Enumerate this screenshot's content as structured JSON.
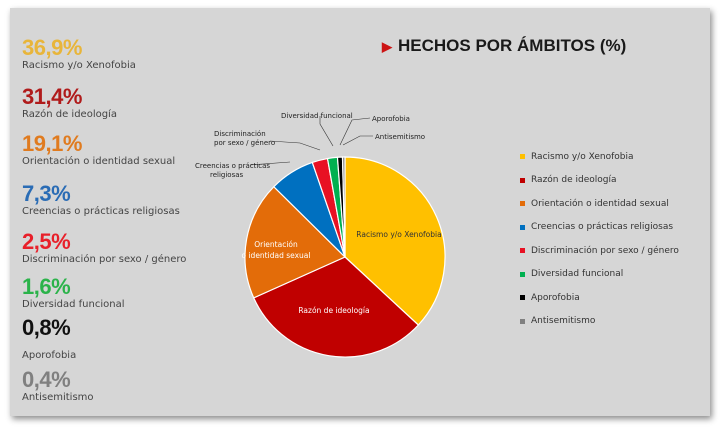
{
  "chart_data": {
    "type": "pie",
    "title": "HECHOS POR ÁMBITOS (%)",
    "categories": [
      "Racismo y/o Xenofobia",
      "Razón de ideología",
      "Orientación o identidad sexual",
      "Creencias o prácticas religiosas",
      "Discriminación por sexo / género",
      "Diversidad funcional",
      "Aporofobia",
      "Antisemitismo"
    ],
    "values": [
      36.9,
      31.4,
      19.1,
      7.3,
      2.5,
      1.6,
      0.8,
      0.4
    ],
    "colors": [
      "#ffc000",
      "#c00000",
      "#e36c09",
      "#0070c0",
      "#e81123",
      "#00b050",
      "#000000",
      "#808080"
    ],
    "legend_placement": "right"
  },
  "stats": [
    {
      "pct": "36,9%",
      "label": "Racismo y/o Xenofobia",
      "color": "#e8b53a"
    },
    {
      "pct": "31,4%",
      "label": "Razón de ideología",
      "color": "#b01b1b"
    },
    {
      "pct": "19,1%",
      "label": "Orientación o identidad sexual",
      "color": "#e07b1f"
    },
    {
      "pct": "7,3%",
      "label": "Creencias o prácticas religiosas",
      "color": "#2a6cb5"
    },
    {
      "pct": "2,5%",
      "label": "Discriminación por sexo / género",
      "color": "#e8202a"
    },
    {
      "pct": "1,6%",
      "label": "Diversidad funcional",
      "color": "#2bb34a"
    },
    {
      "pct": "0,8%",
      "label": "Aporofobia",
      "color": "#111111"
    },
    {
      "pct": "0,4%",
      "label": "Antisemitismo",
      "color": "#808080"
    }
  ],
  "pie_labels": {
    "inside": [
      "Racismo y/o Xenofobia",
      "Razón de ideología",
      "Orientación",
      "o identidad sexual"
    ],
    "callouts": [
      "Discriminación",
      "por sexo / género",
      "Creencias o prácticas",
      "religiosas",
      "Diversidad funcional",
      "Aporofobia",
      "Antisemitismo"
    ]
  },
  "legend": [
    "Racismo y/o Xenofobia",
    "Razón de ideología",
    "Orientación o identidad sexual",
    "Creencias o prácticas religiosas",
    "Discriminación por sexo / género",
    "Diversidad funcional",
    "Aporofobia",
    "Antisemitismo"
  ]
}
